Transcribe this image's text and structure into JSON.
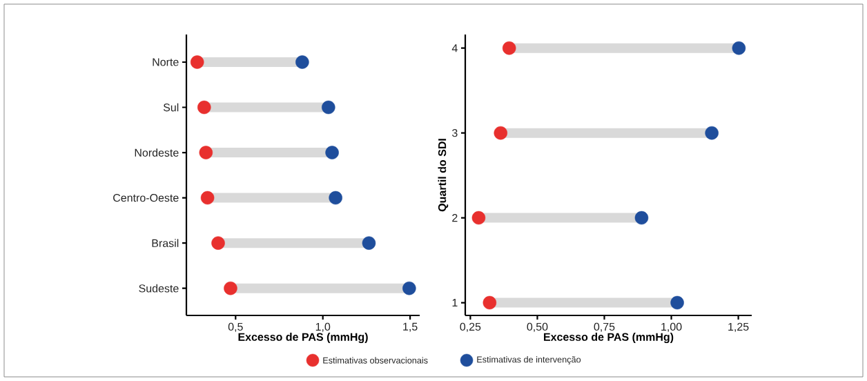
{
  "chart_data": [
    {
      "type": "scatter",
      "orientation": "horizontal",
      "xlabel": "Excesso de PAS (mmHg)",
      "categories": [
        "Norte",
        "Sul",
        "Nordeste",
        "Centro-Oeste",
        "Brasil",
        "Sudeste"
      ],
      "xlim": [
        0.218,
        1.555
      ],
      "xticks": [
        {
          "value": 0.5,
          "label": "0,5"
        },
        {
          "value": 1.0,
          "label": "1,0"
        },
        {
          "value": 1.5,
          "label": "1,5"
        }
      ],
      "marker": "circle",
      "legend": "bottom",
      "series": [
        {
          "name": "Estimativas observacionais",
          "color": "#e8302e",
          "values": [
            0.28,
            0.32,
            0.33,
            0.339,
            0.4,
            0.471
          ]
        },
        {
          "name": "Estimativas de intervenção",
          "color": "#1f4e9c",
          "values": [
            0.882,
            1.032,
            1.053,
            1.073,
            1.264,
            1.495
          ]
        }
      ]
    },
    {
      "type": "scatter",
      "orientation": "horizontal",
      "xlabel": "Excesso de PAS (mmHg)",
      "ylabel": "Quartil do SDI",
      "categories": [
        "4",
        "3",
        "2",
        "1"
      ],
      "xlim": [
        0.231,
        1.3
      ],
      "xticks": [
        {
          "value": 0.25,
          "label": "0,25"
        },
        {
          "value": 0.5,
          "label": "0,50"
        },
        {
          "value": 0.75,
          "label": "0,75"
        },
        {
          "value": 1.0,
          "label": "1,00"
        },
        {
          "value": 1.25,
          "label": "1,25"
        }
      ],
      "marker": "circle",
      "series": [
        {
          "color": "#e8302e",
          "values": [
            0.395,
            0.363,
            0.281,
            0.322
          ]
        },
        {
          "color": "#1f4e9c",
          "values": [
            1.252,
            1.151,
            0.889,
            1.022
          ]
        }
      ]
    }
  ]
}
